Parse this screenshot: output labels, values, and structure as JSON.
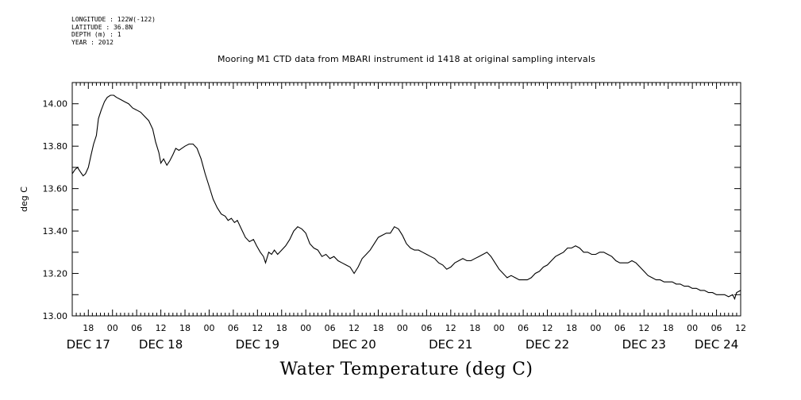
{
  "header": {
    "longitude": "LONGITUDE : 122W(-122)",
    "latitude": "LATITUDE : 36.8N",
    "depth": "DEPTH (m) : 1",
    "year": "YEAR : 2012"
  },
  "chart_data": {
    "type": "line",
    "title": "Mooring M1 CTD data from MBARI instrument id 1418 at original sampling intervals",
    "ylabel": "deg C",
    "footer_title": "Water Temperature (deg C)",
    "ylim": [
      13.0,
      14.1
    ],
    "y_ticks": [
      "13.00",
      "13.20",
      "13.40",
      "13.60",
      "13.80",
      "14.00"
    ],
    "x_range_hours": [
      -10,
      156
    ],
    "x_hour_ticks": [
      {
        "h": -6,
        "label": "18"
      },
      {
        "h": 0,
        "label": "00"
      },
      {
        "h": 6,
        "label": "06"
      },
      {
        "h": 12,
        "label": "12"
      },
      {
        "h": 18,
        "label": "18"
      },
      {
        "h": 24,
        "label": "00"
      },
      {
        "h": 30,
        "label": "06"
      },
      {
        "h": 36,
        "label": "12"
      },
      {
        "h": 42,
        "label": "18"
      },
      {
        "h": 48,
        "label": "00"
      },
      {
        "h": 54,
        "label": "06"
      },
      {
        "h": 60,
        "label": "12"
      },
      {
        "h": 66,
        "label": "18"
      },
      {
        "h": 72,
        "label": "00"
      },
      {
        "h": 78,
        "label": "06"
      },
      {
        "h": 84,
        "label": "12"
      },
      {
        "h": 90,
        "label": "18"
      },
      {
        "h": 96,
        "label": "00"
      },
      {
        "h": 102,
        "label": "06"
      },
      {
        "h": 108,
        "label": "12"
      },
      {
        "h": 114,
        "label": "18"
      },
      {
        "h": 120,
        "label": "00"
      },
      {
        "h": 126,
        "label": "06"
      },
      {
        "h": 132,
        "label": "12"
      },
      {
        "h": 138,
        "label": "18"
      },
      {
        "h": 144,
        "label": "00"
      },
      {
        "h": 150,
        "label": "06"
      },
      {
        "h": 156,
        "label": "12"
      }
    ],
    "x_day_labels": [
      {
        "h": -6,
        "label": "DEC 17"
      },
      {
        "h": 12,
        "label": "DEC 18"
      },
      {
        "h": 36,
        "label": "DEC 19"
      },
      {
        "h": 60,
        "label": "DEC 20"
      },
      {
        "h": 84,
        "label": "DEC 21"
      },
      {
        "h": 108,
        "label": "DEC 22"
      },
      {
        "h": 132,
        "label": "DEC 23"
      },
      {
        "h": 150,
        "label": "DEC 24"
      }
    ],
    "series": [
      {
        "values": [
          [
            -10,
            13.67
          ],
          [
            -9.3,
            13.69
          ],
          [
            -8.7,
            13.7
          ],
          [
            -8,
            13.68
          ],
          [
            -7.3,
            13.66
          ],
          [
            -6.7,
            13.67
          ],
          [
            -6,
            13.7
          ],
          [
            -5.3,
            13.76
          ],
          [
            -4.7,
            13.81
          ],
          [
            -4,
            13.85
          ],
          [
            -3.5,
            13.93
          ],
          [
            -2.8,
            13.97
          ],
          [
            -2,
            14.01
          ],
          [
            -1.3,
            14.03
          ],
          [
            -0.5,
            14.04
          ],
          [
            0.3,
            14.04
          ],
          [
            1,
            14.03
          ],
          [
            2,
            14.02
          ],
          [
            3,
            14.01
          ],
          [
            4,
            14.0
          ],
          [
            5,
            13.98
          ],
          [
            6,
            13.97
          ],
          [
            7,
            13.96
          ],
          [
            8,
            13.94
          ],
          [
            9,
            13.92
          ],
          [
            10,
            13.88
          ],
          [
            10.7,
            13.82
          ],
          [
            11.5,
            13.77
          ],
          [
            12,
            13.72
          ],
          [
            12.7,
            13.74
          ],
          [
            13.5,
            13.71
          ],
          [
            14.2,
            13.73
          ],
          [
            15,
            13.76
          ],
          [
            15.7,
            13.79
          ],
          [
            16.5,
            13.78
          ],
          [
            17.2,
            13.79
          ],
          [
            18,
            13.8
          ],
          [
            19,
            13.81
          ],
          [
            20,
            13.81
          ],
          [
            21,
            13.79
          ],
          [
            22,
            13.74
          ],
          [
            23,
            13.67
          ],
          [
            24,
            13.61
          ],
          [
            25,
            13.55
          ],
          [
            26,
            13.51
          ],
          [
            27,
            13.48
          ],
          [
            28,
            13.47
          ],
          [
            28.7,
            13.45
          ],
          [
            29.5,
            13.46
          ],
          [
            30.3,
            13.44
          ],
          [
            31,
            13.45
          ],
          [
            32,
            13.41
          ],
          [
            33,
            13.37
          ],
          [
            34,
            13.35
          ],
          [
            35,
            13.36
          ],
          [
            35.8,
            13.33
          ],
          [
            36.7,
            13.3
          ],
          [
            37.5,
            13.28
          ],
          [
            38,
            13.25
          ],
          [
            38.8,
            13.3
          ],
          [
            39.5,
            13.29
          ],
          [
            40.2,
            13.31
          ],
          [
            41,
            13.29
          ],
          [
            42,
            13.31
          ],
          [
            43,
            13.33
          ],
          [
            44,
            13.36
          ],
          [
            45,
            13.4
          ],
          [
            46,
            13.42
          ],
          [
            47,
            13.41
          ],
          [
            48,
            13.39
          ],
          [
            49,
            13.34
          ],
          [
            50,
            13.32
          ],
          [
            51,
            13.31
          ],
          [
            52,
            13.28
          ],
          [
            53,
            13.29
          ],
          [
            54,
            13.27
          ],
          [
            55,
            13.28
          ],
          [
            56,
            13.26
          ],
          [
            57,
            13.25
          ],
          [
            58,
            13.24
          ],
          [
            59,
            13.23
          ],
          [
            60,
            13.2
          ],
          [
            61,
            13.23
          ],
          [
            62,
            13.27
          ],
          [
            63,
            13.29
          ],
          [
            64,
            13.31
          ],
          [
            65,
            13.34
          ],
          [
            66,
            13.37
          ],
          [
            67,
            13.38
          ],
          [
            68,
            13.39
          ],
          [
            69,
            13.39
          ],
          [
            70,
            13.42
          ],
          [
            71,
            13.41
          ],
          [
            72,
            13.38
          ],
          [
            73,
            13.34
          ],
          [
            74,
            13.32
          ],
          [
            75,
            13.31
          ],
          [
            76,
            13.31
          ],
          [
            77,
            13.3
          ],
          [
            78,
            13.29
          ],
          [
            79,
            13.28
          ],
          [
            80,
            13.27
          ],
          [
            81,
            13.25
          ],
          [
            82,
            13.24
          ],
          [
            83,
            13.22
          ],
          [
            84,
            13.23
          ],
          [
            85,
            13.25
          ],
          [
            86,
            13.26
          ],
          [
            87,
            13.27
          ],
          [
            88,
            13.26
          ],
          [
            89,
            13.26
          ],
          [
            90,
            13.27
          ],
          [
            91,
            13.28
          ],
          [
            92,
            13.29
          ],
          [
            93,
            13.3
          ],
          [
            94,
            13.28
          ],
          [
            95,
            13.25
          ],
          [
            96,
            13.22
          ],
          [
            97,
            13.2
          ],
          [
            98,
            13.18
          ],
          [
            99,
            13.19
          ],
          [
            100,
            13.18
          ],
          [
            101,
            13.17
          ],
          [
            102,
            13.17
          ],
          [
            103,
            13.17
          ],
          [
            104,
            13.18
          ],
          [
            105,
            13.2
          ],
          [
            106,
            13.21
          ],
          [
            107,
            13.23
          ],
          [
            108,
            13.24
          ],
          [
            109,
            13.26
          ],
          [
            110,
            13.28
          ],
          [
            111,
            13.29
          ],
          [
            112,
            13.3
          ],
          [
            113,
            13.32
          ],
          [
            114,
            13.32
          ],
          [
            115,
            13.33
          ],
          [
            116,
            13.32
          ],
          [
            117,
            13.3
          ],
          [
            118,
            13.3
          ],
          [
            119,
            13.29
          ],
          [
            120,
            13.29
          ],
          [
            121,
            13.3
          ],
          [
            122,
            13.3
          ],
          [
            123,
            13.29
          ],
          [
            124,
            13.28
          ],
          [
            125,
            13.26
          ],
          [
            126,
            13.25
          ],
          [
            127,
            13.25
          ],
          [
            128,
            13.25
          ],
          [
            129,
            13.26
          ],
          [
            130,
            13.25
          ],
          [
            131,
            13.23
          ],
          [
            132,
            13.21
          ],
          [
            133,
            13.19
          ],
          [
            134,
            13.18
          ],
          [
            135,
            13.17
          ],
          [
            136,
            13.17
          ],
          [
            137,
            13.16
          ],
          [
            138,
            13.16
          ],
          [
            139,
            13.16
          ],
          [
            140,
            13.15
          ],
          [
            141,
            13.15
          ],
          [
            142,
            13.14
          ],
          [
            143,
            13.14
          ],
          [
            144,
            13.13
          ],
          [
            145,
            13.13
          ],
          [
            146,
            13.12
          ],
          [
            147,
            13.12
          ],
          [
            148,
            13.11
          ],
          [
            149,
            13.11
          ],
          [
            150,
            13.1
          ],
          [
            151,
            13.1
          ],
          [
            152,
            13.1
          ],
          [
            153,
            13.09
          ],
          [
            154,
            13.1
          ],
          [
            154.5,
            13.08
          ],
          [
            155,
            13.11
          ],
          [
            156,
            13.12
          ]
        ]
      }
    ]
  }
}
